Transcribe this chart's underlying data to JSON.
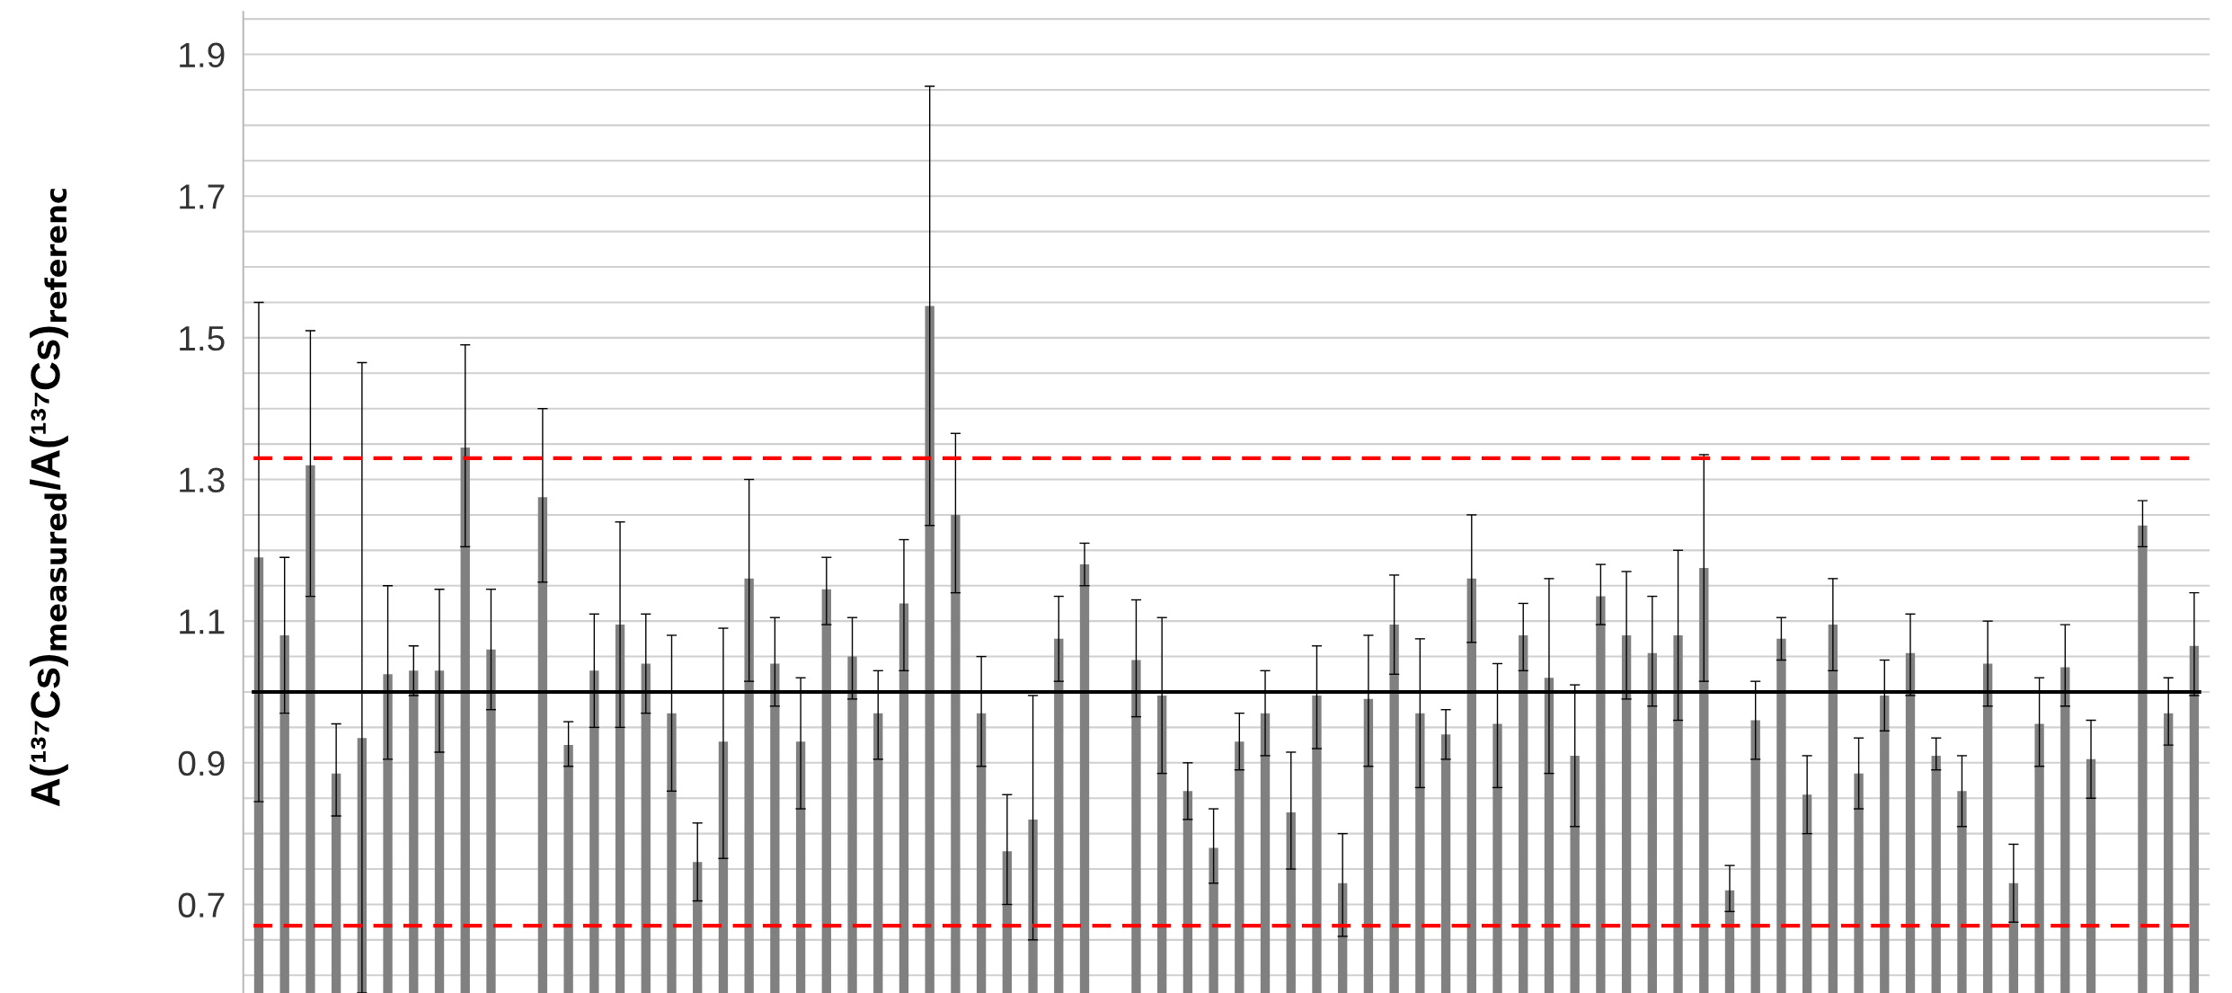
{
  "chart_data": {
    "type": "bar",
    "ylabel": "A(¹³⁷Cs)$_{measured}$/A(¹³⁷Cs)$_{referenc}$",
    "categories": [
      null,
      null,
      null,
      null,
      null,
      null,
      null,
      null,
      null,
      null,
      null,
      null,
      null,
      null,
      null,
      null,
      null,
      null,
      null,
      null,
      null,
      null,
      null,
      null,
      null,
      null,
      null,
      null,
      null,
      null,
      null,
      null,
      null,
      null,
      null,
      null,
      null,
      null,
      null,
      null,
      null,
      null,
      null,
      null,
      null,
      null,
      null,
      null,
      null,
      null,
      null,
      null,
      null,
      null,
      null,
      null,
      null,
      null,
      null,
      null,
      null,
      null,
      null,
      null,
      null,
      null,
      null,
      null,
      null,
      null,
      null,
      null,
      null,
      null,
      null,
      null
    ],
    "values": [
      1.19,
      1.08,
      1.32,
      0.885,
      0.935,
      1.025,
      1.03,
      1.03,
      1.345,
      1.06,
      null,
      1.275,
      0.925,
      1.03,
      1.095,
      1.04,
      0.97,
      0.76,
      0.93,
      1.16,
      1.04,
      0.93,
      1.145,
      1.05,
      0.97,
      1.125,
      1.545,
      1.25,
      0.97,
      0.775,
      0.82,
      1.075,
      1.18,
      null,
      1.045,
      0.995,
      0.86,
      0.78,
      0.93,
      0.97,
      0.83,
      0.995,
      0.73,
      0.99,
      1.095,
      0.97,
      0.94,
      1.16,
      0.955,
      1.08,
      1.02,
      0.91,
      1.135,
      1.08,
      1.055,
      1.08,
      1.175,
      0.72,
      0.96,
      1.075,
      0.855,
      1.095,
      0.885,
      0.995,
      1.055,
      0.91,
      0.86,
      1.04,
      0.73,
      0.955,
      1.035,
      0.905,
      null,
      1.235,
      0.97,
      1.065
    ],
    "errors": [
      [
        0.845,
        1.55
      ],
      [
        0.97,
        1.19
      ],
      [
        1.135,
        1.51
      ],
      [
        0.825,
        0.955
      ],
      [
        0.575,
        1.465
      ],
      [
        0.905,
        1.15
      ],
      [
        0.995,
        1.065
      ],
      [
        0.915,
        1.145
      ],
      [
        1.205,
        1.49
      ],
      [
        0.975,
        1.145
      ],
      null,
      [
        1.155,
        1.4
      ],
      [
        0.895,
        0.958
      ],
      [
        0.95,
        1.11
      ],
      [
        0.95,
        1.24
      ],
      [
        0.97,
        1.11
      ],
      [
        0.86,
        1.08
      ],
      [
        0.705,
        0.815
      ],
      [
        0.765,
        1.09
      ],
      [
        1.015,
        1.3
      ],
      [
        0.98,
        1.105
      ],
      [
        0.835,
        1.02
      ],
      [
        1.095,
        1.19
      ],
      [
        0.99,
        1.105
      ],
      [
        0.905,
        1.03
      ],
      [
        1.03,
        1.215
      ],
      [
        1.235,
        1.855
      ],
      [
        1.14,
        1.365
      ],
      [
        0.895,
        1.05
      ],
      [
        0.7,
        0.855
      ],
      [
        0.65,
        0.995
      ],
      [
        1.015,
        1.135
      ],
      [
        1.15,
        1.21
      ],
      null,
      [
        0.965,
        1.13
      ],
      [
        0.885,
        1.105
      ],
      [
        0.82,
        0.9
      ],
      [
        0.73,
        0.835
      ],
      [
        0.89,
        0.97
      ],
      [
        0.91,
        1.03
      ],
      [
        0.75,
        0.915
      ],
      [
        0.92,
        1.065
      ],
      [
        0.655,
        0.8
      ],
      [
        0.895,
        1.08
      ],
      [
        1.025,
        1.165
      ],
      [
        0.865,
        1.075
      ],
      [
        0.905,
        0.975
      ],
      [
        1.07,
        1.25
      ],
      [
        0.865,
        1.04
      ],
      [
        1.03,
        1.125
      ],
      [
        0.885,
        1.16
      ],
      [
        0.81,
        1.01
      ],
      [
        1.095,
        1.18
      ],
      [
        0.99,
        1.17
      ],
      [
        0.98,
        1.135
      ],
      [
        0.96,
        1.2
      ],
      [
        1.015,
        1.335
      ],
      [
        0.69,
        0.755
      ],
      [
        0.905,
        1.015
      ],
      [
        1.045,
        1.105
      ],
      [
        0.8,
        0.91
      ],
      [
        1.03,
        1.16
      ],
      [
        0.835,
        0.935
      ],
      [
        0.945,
        1.045
      ],
      [
        0.995,
        1.11
      ],
      [
        0.89,
        0.935
      ],
      [
        0.81,
        0.91
      ],
      [
        0.98,
        1.1
      ],
      [
        0.675,
        0.785
      ],
      [
        0.895,
        1.02
      ],
      [
        0.98,
        1.095
      ],
      [
        0.85,
        0.96
      ],
      null,
      [
        1.205,
        1.27
      ],
      [
        0.925,
        1.02
      ],
      [
        0.995,
        1.14
      ]
    ],
    "color": "#808080",
    "ylim": [
      0.575,
      1.96
    ],
    "yticks": [
      {
        "value": 0.6,
        "label": null
      },
      {
        "value": 0.65,
        "label": null
      },
      0.7,
      {
        "value": 0.75,
        "label": null
      },
      {
        "value": 0.8,
        "label": null
      },
      {
        "value": 0.85,
        "label": null
      },
      0.9,
      {
        "value": 0.95,
        "label": null
      },
      {
        "value": 1.0,
        "label": null
      },
      {
        "value": 1.05,
        "label": null
      },
      1.1,
      {
        "value": 1.15,
        "label": null
      },
      {
        "value": 1.2,
        "label": null
      },
      {
        "value": 1.25,
        "label": null
      },
      1.3,
      {
        "value": 1.35,
        "label": null
      },
      {
        "value": 1.4,
        "label": null
      },
      {
        "value": 1.45,
        "label": null
      },
      1.5,
      {
        "value": 1.55,
        "label": null
      },
      {
        "value": 1.6,
        "label": null
      },
      {
        "value": 1.65,
        "label": null
      },
      1.7,
      {
        "value": 1.75,
        "label": null
      },
      {
        "value": 1.8,
        "label": null
      },
      {
        "value": 1.85,
        "label": null
      },
      1.9,
      {
        "value": 1.95,
        "label": null
      }
    ],
    "ref_lines": [
      {
        "axis": "y",
        "value": 1.33,
        "color": "#ff0000",
        "line_style": "dashed"
      },
      {
        "axis": "y",
        "value": 0.67,
        "color": "#ff0000",
        "line_style": "dashed"
      },
      {
        "axis": "y",
        "value": 1.0,
        "color": "#000000",
        "line_style": "solid"
      }
    ],
    "grid": "y",
    "tick_labels": "y",
    "legend": false
  }
}
